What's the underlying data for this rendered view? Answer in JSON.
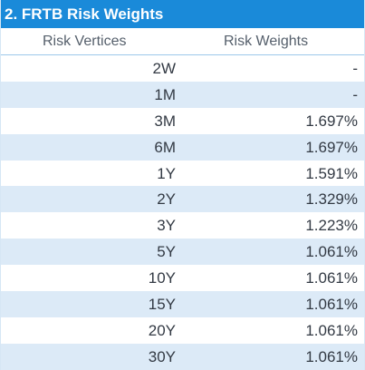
{
  "title": "2. FRTB Risk Weights",
  "headers": {
    "vertex": "Risk Vertices",
    "weight": "Risk Weights"
  },
  "rows": [
    {
      "vertex": "2W",
      "weight": "-"
    },
    {
      "vertex": "1M",
      "weight": "-"
    },
    {
      "vertex": "3M",
      "weight": "1.697%"
    },
    {
      "vertex": "6M",
      "weight": "1.697%"
    },
    {
      "vertex": "1Y",
      "weight": "1.591%"
    },
    {
      "vertex": "2Y",
      "weight": "1.329%"
    },
    {
      "vertex": "3Y",
      "weight": "1.223%"
    },
    {
      "vertex": "5Y",
      "weight": "1.061%"
    },
    {
      "vertex": "10Y",
      "weight": "1.061%"
    },
    {
      "vertex": "15Y",
      "weight": "1.061%"
    },
    {
      "vertex": "20Y",
      "weight": "1.061%"
    },
    {
      "vertex": "30Y",
      "weight": "1.061%"
    }
  ],
  "colors": {
    "title_bg": "#1a8ad9",
    "stripe": "#dceaf7"
  }
}
